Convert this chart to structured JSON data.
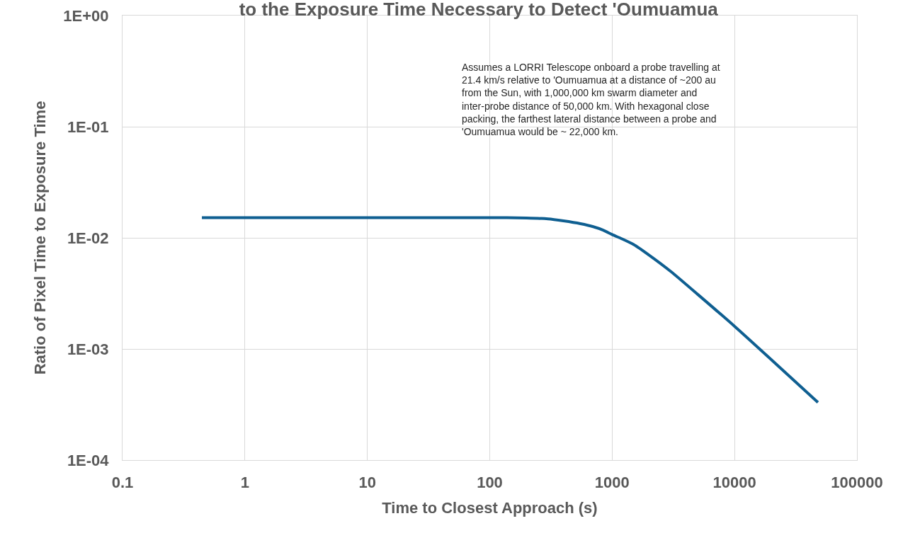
{
  "chart_data": {
    "type": "line",
    "title": "to the Exposure Time Necessary to Detect 'Oumuamua",
    "xlabel": "Time to Closest Approach (s)",
    "ylabel": "Ratio of Pixel Time to Exposure Time",
    "annotations": [
      "Assumes a LORRI Telescope onboard a probe travelling at\n21.4 km/s relative to 'Oumuamua at a distance of ~200 au\nfrom the Sun, with 1,000,000 km swarm diameter and\ninter-probe distance of 50,000 km. With hexagonal close\npacking, the farthest lateral distance between a probe and\n'Oumuamua would be ~ 22,000 km."
    ],
    "series": [
      {
        "color": "#0f5f91",
        "x": [
          0.445,
          1,
          10,
          100,
          200,
          300,
          400,
          550,
          700,
          850,
          1000,
          1200,
          1500,
          2000,
          3000,
          5000,
          10000,
          20000,
          48000
        ],
        "values": [
          0.0152,
          0.0152,
          0.0152,
          0.0152,
          0.0151,
          0.0148,
          0.0142,
          0.0134,
          0.0126,
          0.0117,
          0.0107,
          0.0098,
          0.0087,
          0.007,
          0.005,
          0.0031,
          0.0016,
          0.0008,
          0.00033
        ]
      }
    ],
    "log": "xy",
    "xlim": [
      0.1,
      100000
    ],
    "xticks": [
      0.1,
      1,
      10,
      100,
      1000,
      10000,
      100000
    ],
    "ylim": [
      0.0001,
      1
    ],
    "yticks": [
      {
        "value": 0.0001,
        "label": "1E-04"
      },
      {
        "value": 0.001,
        "label": "1E-03"
      },
      {
        "value": 0.01,
        "label": "1E-02"
      },
      {
        "value": 0.1,
        "label": "1E-01"
      },
      {
        "value": 1,
        "label": "1E+00"
      }
    ],
    "grid": true,
    "marker": "none",
    "line_style": "solid"
  }
}
